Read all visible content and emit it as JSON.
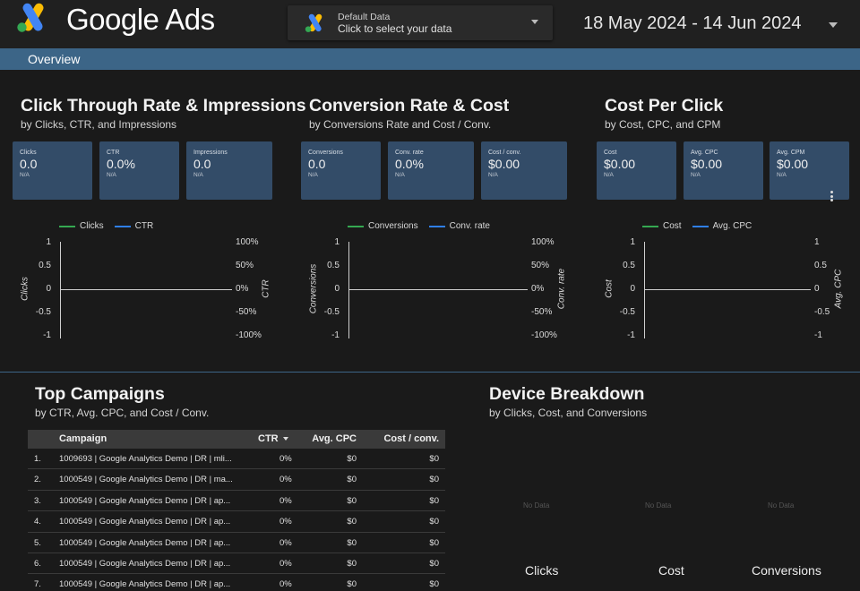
{
  "header": {
    "app_title": "Google Ads",
    "data_selector": {
      "title": "Default Data",
      "subtitle": "Click to select your data"
    },
    "date_range": "18 May 2024 - 14 Jun 2024"
  },
  "nav": {
    "tabs": [
      {
        "label": "Overview"
      }
    ]
  },
  "sections": {
    "ctr": {
      "title": "Click Through Rate & Impressions",
      "subtitle": "by Clicks, CTR, and Impressions"
    },
    "conversion": {
      "title": "Conversion Rate & Cost",
      "subtitle": "by Conversions Rate and Cost / Conv."
    },
    "cpc": {
      "title": "Cost Per Click",
      "subtitle": "by Cost, CPC, and CPM"
    },
    "campaigns": {
      "title": "Top Campaigns",
      "subtitle": "by CTR, Avg. CPC, and Cost / Conv."
    },
    "device": {
      "title": "Device Breakdown",
      "subtitle": "by Clicks, Cost, and Conversions"
    }
  },
  "kpis": [
    {
      "label": "Clicks",
      "value": "0.0",
      "change": "N/A"
    },
    {
      "label": "CTR",
      "value": "0.0%",
      "change": "N/A"
    },
    {
      "label": "Impressions",
      "value": "0.0",
      "change": "N/A"
    },
    {
      "label": "Conversions",
      "value": "0.0",
      "change": "N/A"
    },
    {
      "label": "Conv. rate",
      "value": "0.0%",
      "change": "N/A"
    },
    {
      "label": "Cost / conv.",
      "value": "$0.00",
      "change": "N/A"
    },
    {
      "label": "Cost",
      "value": "$0.00",
      "change": "N/A"
    },
    {
      "label": "Avg. CPC",
      "value": "$0.00",
      "change": "N/A"
    },
    {
      "label": "Avg. CPM",
      "value": "$0.00",
      "change": "N/A"
    }
  ],
  "colors": {
    "series_primary": "#35a851",
    "series_secondary": "#2f7fe8",
    "nav_bar": "#3c6587",
    "card": "#334c68"
  },
  "chart_data": [
    {
      "type": "line",
      "legend": [
        "Clicks",
        "CTR"
      ],
      "ylabel": "Clicks",
      "ylabel_right": "CTR",
      "ylim": [
        -1,
        1
      ],
      "ylim_right": [
        -1,
        1
      ],
      "y_ticks": [
        "1",
        "0.5",
        "0",
        "-0.5",
        "-1"
      ],
      "y_ticks_right": [
        "100%",
        "50%",
        "0%",
        "-50%",
        "-100%"
      ],
      "series": [
        {
          "name": "Clicks",
          "values": []
        },
        {
          "name": "CTR",
          "values": []
        }
      ]
    },
    {
      "type": "line",
      "legend": [
        "Conversions",
        "Conv. rate"
      ],
      "ylabel": "Conversions",
      "ylabel_right": "Conv. rate",
      "ylim": [
        -1,
        1
      ],
      "ylim_right": [
        -1,
        1
      ],
      "y_ticks": [
        "1",
        "0.5",
        "0",
        "-0.5",
        "-1"
      ],
      "y_ticks_right": [
        "100%",
        "50%",
        "0%",
        "-50%",
        "-100%"
      ],
      "series": [
        {
          "name": "Conversions",
          "values": []
        },
        {
          "name": "Conv. rate",
          "values": []
        }
      ]
    },
    {
      "type": "line",
      "legend": [
        "Cost",
        "Avg. CPC"
      ],
      "ylabel": "Cost",
      "ylabel_right": "Avg. CPC",
      "ylim": [
        -1,
        1
      ],
      "ylim_right": [
        -1,
        1
      ],
      "y_ticks": [
        "1",
        "0.5",
        "0",
        "-0.5",
        "-1"
      ],
      "y_ticks_right": [
        "1",
        "0.5",
        "0",
        "-0.5",
        "-1"
      ],
      "series": [
        {
          "name": "Cost",
          "values": []
        },
        {
          "name": "Avg. CPC",
          "values": []
        }
      ]
    }
  ],
  "table": {
    "headers": [
      "Campaign",
      "CTR",
      "Avg. CPC",
      "Cost / conv."
    ],
    "rows": [
      {
        "idx": "1.",
        "campaign": "1009693 | Google Analytics Demo | DR | mli...",
        "ctr": "0%",
        "cpc": "$0",
        "cost_conv": "$0"
      },
      {
        "idx": "2.",
        "campaign": "1000549 | Google Analytics Demo | DR | ma...",
        "ctr": "0%",
        "cpc": "$0",
        "cost_conv": "$0"
      },
      {
        "idx": "3.",
        "campaign": "1000549 | Google Analytics Demo | DR | ap...",
        "ctr": "0%",
        "cpc": "$0",
        "cost_conv": "$0"
      },
      {
        "idx": "4.",
        "campaign": "1000549 | Google Analytics Demo | DR | ap...",
        "ctr": "0%",
        "cpc": "$0",
        "cost_conv": "$0"
      },
      {
        "idx": "5.",
        "campaign": "1000549 | Google Analytics Demo | DR | ap...",
        "ctr": "0%",
        "cpc": "$0",
        "cost_conv": "$0"
      },
      {
        "idx": "6.",
        "campaign": "1000549 | Google Analytics Demo | DR | ap...",
        "ctr": "0%",
        "cpc": "$0",
        "cost_conv": "$0"
      },
      {
        "idx": "7.",
        "campaign": "1000549 | Google Analytics Demo | DR | ap...",
        "ctr": "0%",
        "cpc": "$0",
        "cost_conv": "$0"
      }
    ]
  },
  "device_breakdown": {
    "no_data": "No Data",
    "labels": [
      "Clicks",
      "Cost",
      "Conversions"
    ]
  }
}
